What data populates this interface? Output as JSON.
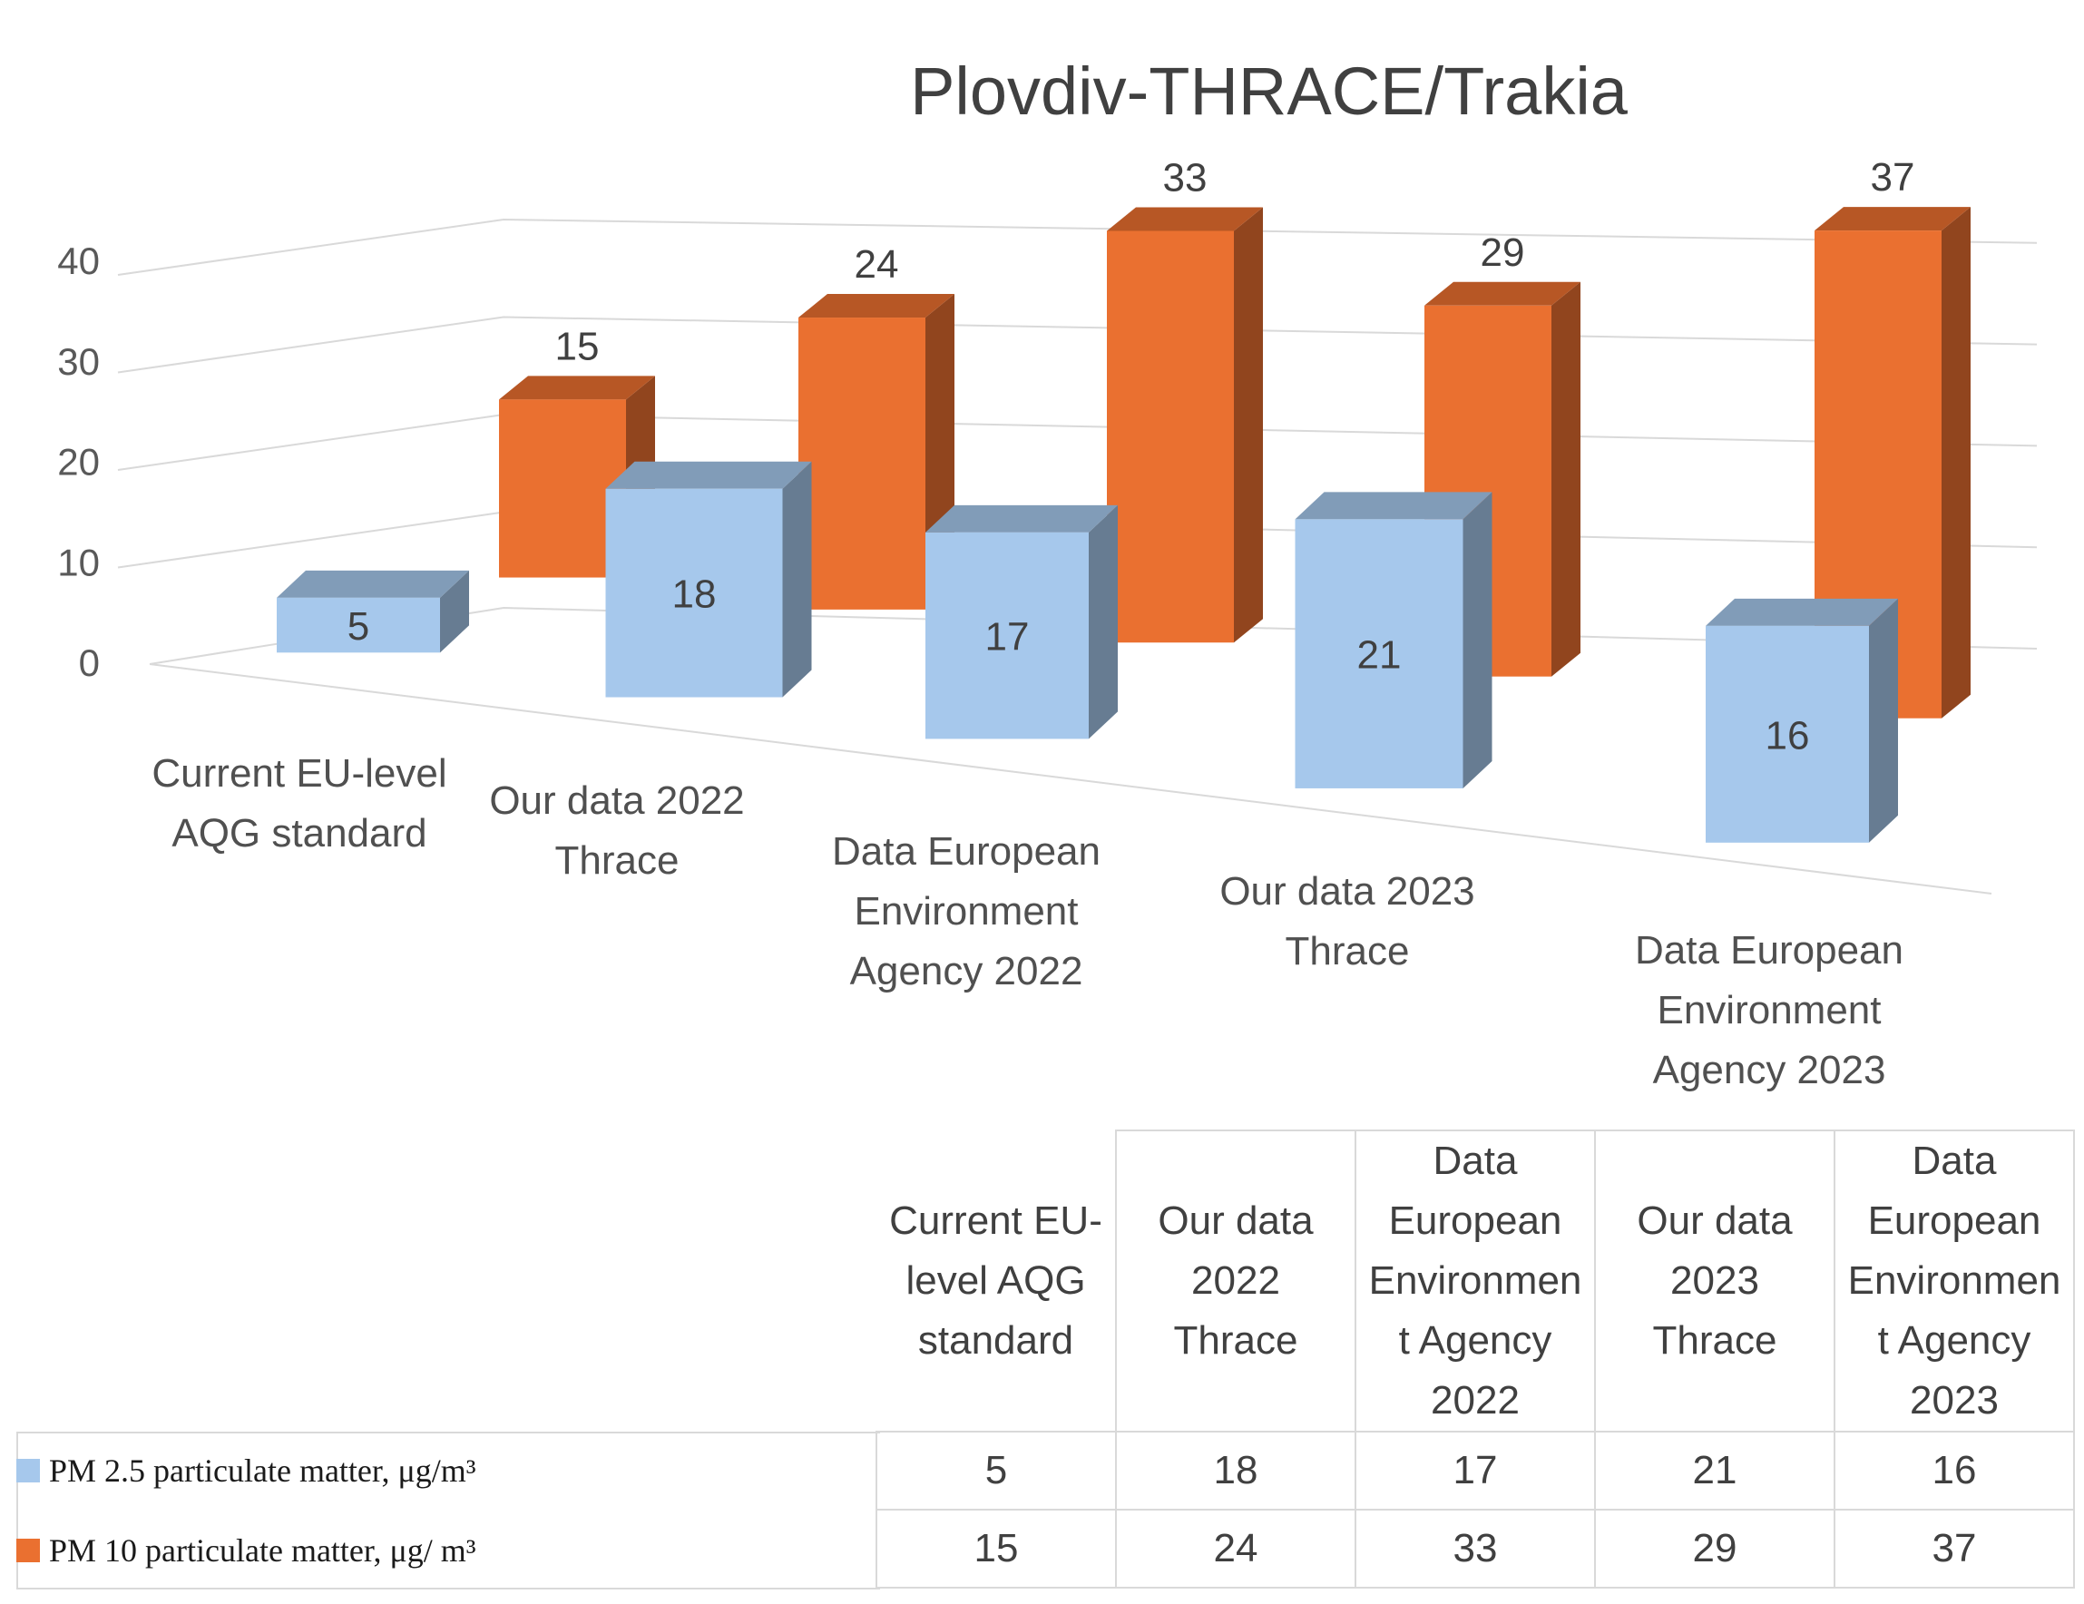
{
  "chart_data": {
    "type": "bar",
    "title": "Plovdiv-THRACE/Trakia",
    "categories": [
      "Current EU-level AQG standard",
      "Our data 2022 Thrace",
      "Data European Environment Agency 2022",
      "Our data 2023 Thrace",
      "Data European Environment Agency 2023"
    ],
    "category_labels": [
      "Current EU-level\nAQG standard",
      "Our data 2022\nThrace",
      "Data European\nEnvironment\nAgency 2022",
      "Our data 2023\nThrace",
      "Data European\nEnvironment\nAgency 2023"
    ],
    "table_headers": [
      "Current EU-\nlevel AQG\nstandard",
      "Our data\n2022\nThrace",
      "Data\nEuropean\nEnvironmen\nt Agency\n2022",
      "Our data\n2023\nThrace",
      "Data\nEuropean\nEnvironmen\nt Agency\n2023"
    ],
    "series": [
      {
        "name": "PM 2.5 particulate matter, μg/m³",
        "values": [
          5,
          18,
          17,
          21,
          16
        ],
        "color": "#a6c8ec"
      },
      {
        "name": "PM 10 particulate matter, μg/ m³",
        "values": [
          15,
          24,
          33,
          29,
          37
        ],
        "color": "#ea7030"
      }
    ],
    "yticks": [
      0,
      10,
      20,
      30,
      40
    ],
    "ylim": [
      0,
      40
    ],
    "grid": true,
    "legend": "table-left"
  }
}
